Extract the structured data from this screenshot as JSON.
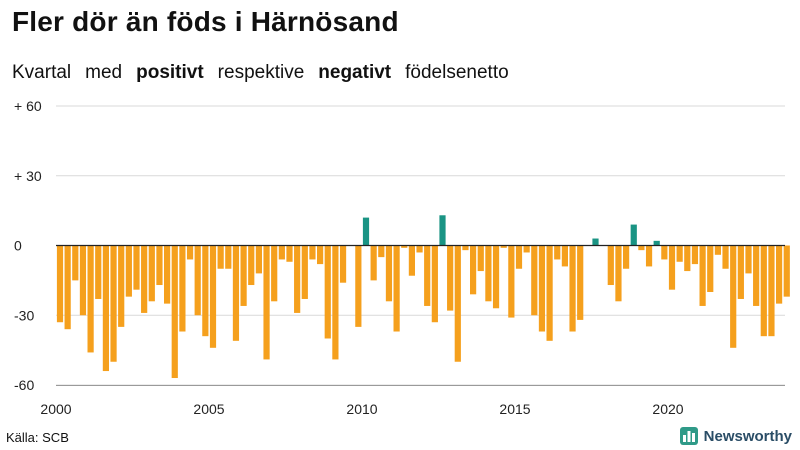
{
  "title": "Fler dör än föds i Härnösand",
  "subtitle": {
    "w1": "Kvartal",
    "w2": "med",
    "w3": "positivt",
    "w4": "respektive",
    "w5": "negativt",
    "w6": "födelsenetto"
  },
  "source": "Källa: SCB",
  "brand": "Newsworthy",
  "brand_icon": "bar-chart-logo-icon",
  "colors": {
    "positive": "#1a9484",
    "negative": "#f5a01d",
    "grid": "#d9d9d9",
    "zero": "#222222"
  },
  "chart_data": {
    "type": "bar",
    "title": "Fler dör än föds i Härnösand",
    "x_start_year": 2000,
    "periods_per_year": 4,
    "xticks": [
      "2000",
      "2005",
      "2010",
      "2015",
      "2020"
    ],
    "yticks": [
      "+ 60",
      "+ 30",
      "0",
      "-30",
      "-60"
    ],
    "ytick_values": [
      60,
      30,
      0,
      -30,
      -60
    ],
    "ylim": [
      -60,
      60
    ],
    "grid": true,
    "values": [
      -33,
      -36,
      -15,
      -30,
      -46,
      -23,
      -54,
      -50,
      -35,
      -22,
      -19,
      -29,
      -24,
      -17,
      -25,
      -57,
      -37,
      -6,
      -30,
      -39,
      -44,
      -10,
      -10,
      -41,
      -26,
      -17,
      -12,
      -49,
      -24,
      -6,
      -7,
      -29,
      -23,
      -6,
      -8,
      -40,
      -49,
      -16,
      0,
      -35,
      12,
      -15,
      -5,
      -24,
      -37,
      -1,
      -13,
      -3,
      -26,
      -33,
      13,
      -28,
      -50,
      -2,
      -21,
      -11,
      -24,
      -27,
      -1,
      -31,
      -10,
      -3,
      -30,
      -37,
      -41,
      -6,
      -9,
      -37,
      -32,
      0,
      3,
      0,
      -17,
      -24,
      -10,
      9,
      -2,
      -9,
      2,
      -6,
      -19,
      -7,
      -11,
      -8,
      -26,
      -20,
      -4,
      -10,
      -44,
      -23,
      -12,
      -26,
      -39,
      -39,
      -25,
      -22
    ]
  }
}
